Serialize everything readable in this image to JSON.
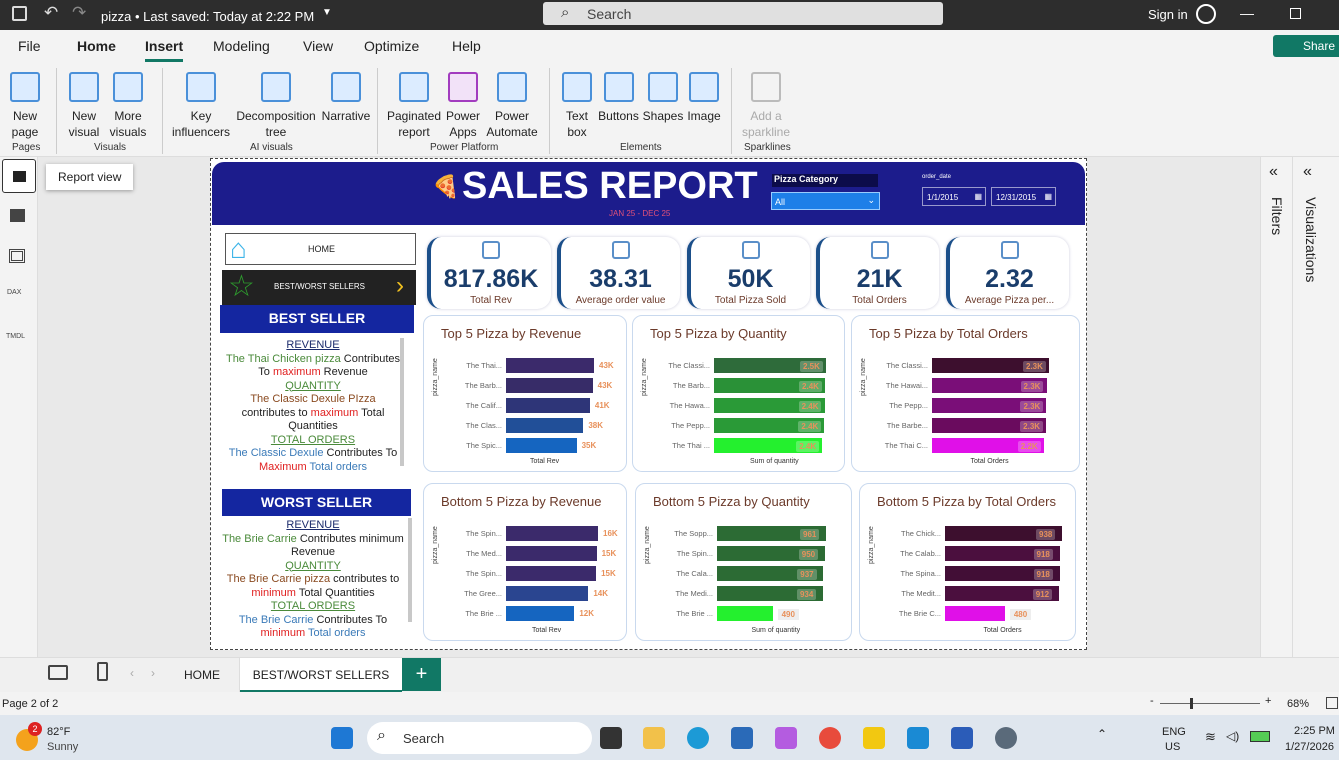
{
  "titlebar": {
    "doc_title": "pizza • Last saved: Today at 2:22 PM",
    "search": "Search",
    "sign_in": "Sign in"
  },
  "menu": [
    "File",
    "Home",
    "Insert",
    "Modeling",
    "View",
    "Optimize",
    "Help"
  ],
  "share": "Share",
  "ribbon": {
    "items": [
      "New page",
      "New visual",
      "More visuals",
      "Key influencers",
      "Decomposition tree",
      "Narrative",
      "Paginated report",
      "Power Apps",
      "Power Automate",
      "Text box",
      "Buttons",
      "Shapes",
      "Image",
      "Add a sparkline"
    ],
    "groups": [
      "Pages",
      "Visuals",
      "AI visuals",
      "Power Platform",
      "Elements",
      "Sparklines"
    ]
  },
  "tooltip": "Report view",
  "rail": [
    "DAX",
    "TMDL"
  ],
  "panes": {
    "filters": "Filters",
    "visualizations": "Visualizations"
  },
  "report": {
    "title": "SALES REPORT",
    "subtitle": "JAN 25 - DEC 25",
    "slicer_label": "Pizza Category",
    "slicer_value": "All",
    "date_label": "order_date",
    "date_from": "1/1/2015",
    "date_to": "12/31/2015",
    "nav_home": "HOME",
    "nav_best": "BEST/WORST SELLERS",
    "kpis": [
      {
        "value": "817.86K",
        "label": "Total Rev"
      },
      {
        "value": "38.31",
        "label": "Average order value"
      },
      {
        "value": "50K",
        "label": "Total Pizza Sold"
      },
      {
        "value": "21K",
        "label": "Total Orders"
      },
      {
        "value": "2.32",
        "label": "Average Pizza per..."
      }
    ],
    "best": {
      "banner": "BEST SELLER",
      "rev_h": "REVENUE",
      "rev_a": "The Thai Chicken pizza",
      "rev_b": " Contributes To ",
      "rev_c": "maximum",
      "rev_d": " Revenue",
      "qty_h": "QUANTITY",
      "qty_a": "The Classic Dexule PIzza",
      "qty_b": " contributes to ",
      "qty_c": "maximum",
      "qty_d": " Total Quantities",
      "ord_h": "TOTAL ORDERS",
      "ord_a": "The Classic Dexule",
      "ord_b": "  Contributes To ",
      "ord_c": "Maximum",
      "ord_d": " Total orders"
    },
    "worst": {
      "banner": "WORST SELLER",
      "rev_h": "REVENUE",
      "rev_a": "The Brie Carrie",
      "rev_b": " Contributes minimum  Revenue",
      "qty_h": "QUANTITY",
      "qty_a": "The Brie Carrie pizza",
      "qty_b": " contributes to ",
      "qty_c": "minimum",
      "qty_d": " Total Quantities",
      "ord_h": "TOTAL ORDERS",
      "ord_a": "The Brie Carrie",
      "ord_b": "  Contributes To ",
      "ord_c": "minimum",
      "ord_d": " Total orders"
    }
  },
  "chart_data": [
    {
      "type": "bar",
      "title": "Top 5 Pizza by Revenue",
      "xlabel": "Total Rev",
      "ylabel": "pizza_name",
      "categories": [
        "The Thai...",
        "The Barb...",
        "The Calif...",
        "The Clas...",
        "The Spic..."
      ],
      "values": [
        43434,
        42768,
        41410,
        38180,
        34831
      ],
      "value_labels": [
        "43K",
        "43K",
        "41K",
        "38K",
        "35K"
      ],
      "colors": [
        "#3b2a6b",
        "#372c68",
        "#2e3578",
        "#214f98",
        "#1565c0"
      ],
      "label_position": "outside"
    },
    {
      "type": "bar",
      "title": "Top 5 Pizza by Quantity",
      "xlabel": "Sum of quantity",
      "ylabel": "pizza_name",
      "categories": [
        "The Classi...",
        "The Barb...",
        "The Hawa...",
        "The Pepp...",
        "The Thai ..."
      ],
      "values": [
        2453,
        2432,
        2422,
        2418,
        2371
      ],
      "value_labels": [
        "2.5K",
        "2.4K",
        "2.4K",
        "2.4K",
        "2.4K"
      ],
      "colors": [
        "#2e6b3a",
        "#2a9137",
        "#2a9a37",
        "#2a9a37",
        "#24f02e"
      ],
      "label_position": "inside"
    },
    {
      "type": "bar",
      "title": "Top 5 Pizza by Total Orders",
      "xlabel": "Total Orders",
      "ylabel": "pizza_name",
      "categories": [
        "The Classi...",
        "The Hawai...",
        "The Pepp...",
        "The Barbe...",
        "The Thai C..."
      ],
      "values": [
        2329,
        2280,
        2278,
        2273,
        2225
      ],
      "value_labels": [
        "2.3K",
        "2.3K",
        "2.3K",
        "2.3K",
        "2.2K"
      ],
      "colors": [
        "#3d0f2e",
        "#7a0e78",
        "#7a0e78",
        "#6a0b5e",
        "#e010e8"
      ],
      "label_position": "inside"
    },
    {
      "type": "bar",
      "title": "Bottom 5 Pizza by Revenue",
      "xlabel": "Total Rev",
      "ylabel": "pizza_name",
      "categories": [
        "The Spin...",
        "The Med...",
        "The Spin...",
        "The Gree...",
        "The Brie ..."
      ],
      "values": [
        15596,
        15360,
        15278,
        13956,
        11588
      ],
      "value_labels": [
        "16K",
        "15K",
        "15K",
        "14K",
        "12K"
      ],
      "colors": [
        "#3b2a6b",
        "#3b2a6b",
        "#3b2a6b",
        "#2a4590",
        "#1565c0"
      ],
      "label_position": "outside"
    },
    {
      "type": "bar",
      "title": "Bottom 5 Pizza by Quantity",
      "xlabel": "Sum of quantity",
      "ylabel": "pizza_name",
      "categories": [
        "The Sopp...",
        "The Spin...",
        "The Cala...",
        "The Medi...",
        "The Brie ..."
      ],
      "values": [
        961,
        950,
        937,
        934,
        490
      ],
      "value_labels": [
        "961",
        "950",
        "937",
        "934",
        "490"
      ],
      "colors": [
        "#2c6b34",
        "#2c6b34",
        "#2c6b34",
        "#2c6b34",
        "#24f02e"
      ],
      "label_position": "inside"
    },
    {
      "type": "bar",
      "title": "Bottom 5 Pizza by Total Orders",
      "xlabel": "Total Orders",
      "ylabel": "pizza_name",
      "categories": [
        "The Chick...",
        "The Calab...",
        "The Spina...",
        "The Medit...",
        "The Brie C..."
      ],
      "values": [
        938,
        918,
        918,
        912,
        480
      ],
      "value_labels": [
        "938",
        "918",
        "918",
        "912",
        "480"
      ],
      "colors": [
        "#3d0f2e",
        "#4b0f3e",
        "#420e36",
        "#4b0f3e",
        "#e010e8"
      ],
      "label_position": "inside"
    }
  ],
  "pagetabs": [
    "HOME",
    "BEST/WORST SELLERS"
  ],
  "status": {
    "page": "Page 2 of 2",
    "zoom": "68%"
  },
  "taskbar": {
    "temp": "82°F",
    "weather": "Sunny",
    "badge": "2",
    "search": "Search",
    "lang1": "ENG",
    "lang2": "US",
    "time": "2:25 PM",
    "date": "1/27/2026"
  }
}
